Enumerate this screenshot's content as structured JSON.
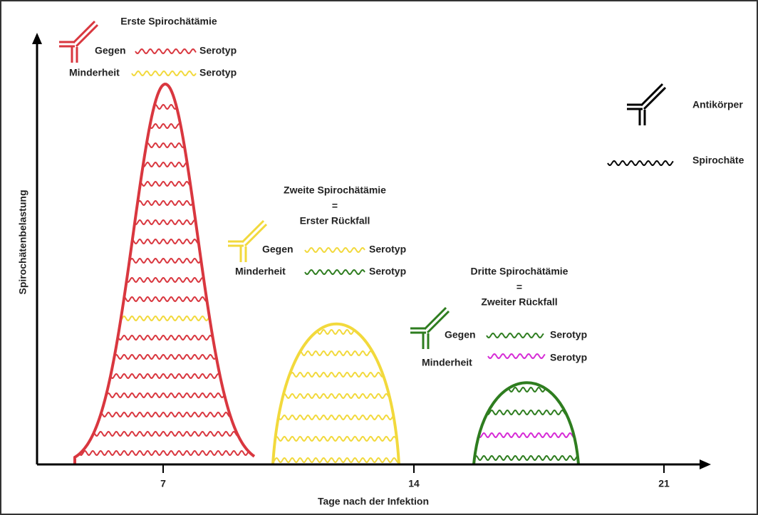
{
  "axes": {
    "y_label": "Spirochätenbelastung",
    "x_label": "Tage nach der Infektion",
    "x_ticks": [
      "7",
      "14",
      "21"
    ]
  },
  "peaks": [
    {
      "title_lines": [
        "Erste Spirochätämie"
      ],
      "against": "Gegen",
      "against_serotype": "Serotyp",
      "minority": "Minderheit",
      "minority_serotype": "Serotyp"
    },
    {
      "title_lines": [
        "Zweite Spirochätämie",
        "=",
        "Erster Rückfall"
      ],
      "against": "Gegen",
      "against_serotype": "Serotyp",
      "minority": "Minderheit",
      "minority_serotype": "Serotyp"
    },
    {
      "title_lines": [
        "Dritte Spirochätämie",
        "=",
        "Zweiter Rückfall"
      ],
      "against": "Gegen",
      "against_serotype": "Serotyp",
      "minority": "Minderheit",
      "minority_serotype": "Serotyp"
    }
  ],
  "legend": {
    "antibody": "Antikörper",
    "spirochete": "Spirochäte"
  }
}
